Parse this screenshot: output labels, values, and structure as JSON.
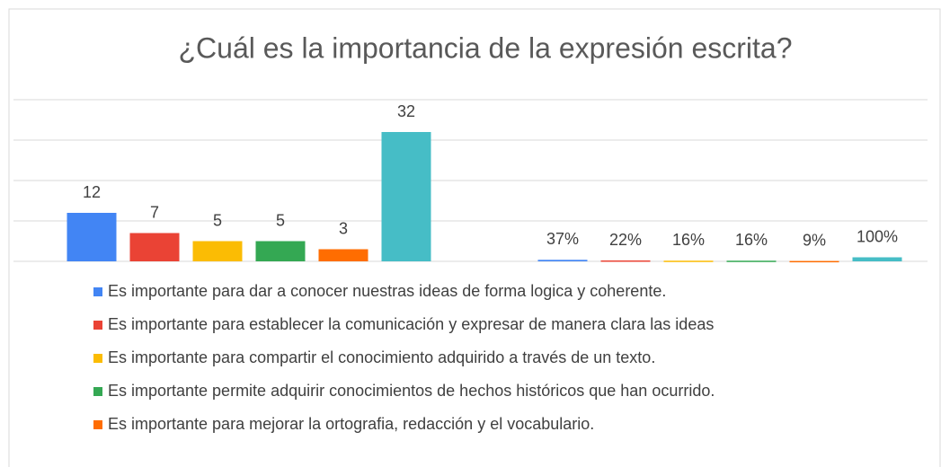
{
  "chart_data": {
    "type": "bar",
    "title": "¿Cuál es la importancia de la expresión escrita?",
    "categories": [
      null,
      null
    ],
    "ylim": [
      0,
      40
    ],
    "yticks": [
      0,
      10,
      20,
      30,
      40
    ],
    "grid": true,
    "series": [
      {
        "name": "Es importante para dar a conocer nuestras ideas de forma logica y coherente.",
        "color": "#4285f4",
        "values": [
          12,
          0.37
        ],
        "value_labels": [
          "12",
          "37%"
        ]
      },
      {
        "name": "Es importante para establecer la comunicación y expresar de manera clara las ideas",
        "color": "#ea4335",
        "values": [
          7,
          0.22
        ],
        "value_labels": [
          "7",
          "22%"
        ]
      },
      {
        "name": "Es importante para compartir el conocimiento adquirido a través de un texto.",
        "color": "#fbbc04",
        "values": [
          5,
          0.16
        ],
        "value_labels": [
          "5",
          "16%"
        ]
      },
      {
        "name": "Es importante permite adquirir conocimientos de hechos históricos que han ocurrido.",
        "color": "#34a853",
        "values": [
          5,
          0.16
        ],
        "value_labels": [
          "5",
          "16%"
        ]
      },
      {
        "name": "Es importante para mejorar la ortografia, redacción y el vocabulario.",
        "color": "#ff6d01",
        "values": [
          3,
          0.09
        ],
        "value_labels": [
          "3",
          "9%"
        ]
      },
      {
        "color": "#46bdc6",
        "values": [
          32,
          1.0
        ],
        "value_labels": [
          "32",
          "100%"
        ]
      }
    ]
  }
}
